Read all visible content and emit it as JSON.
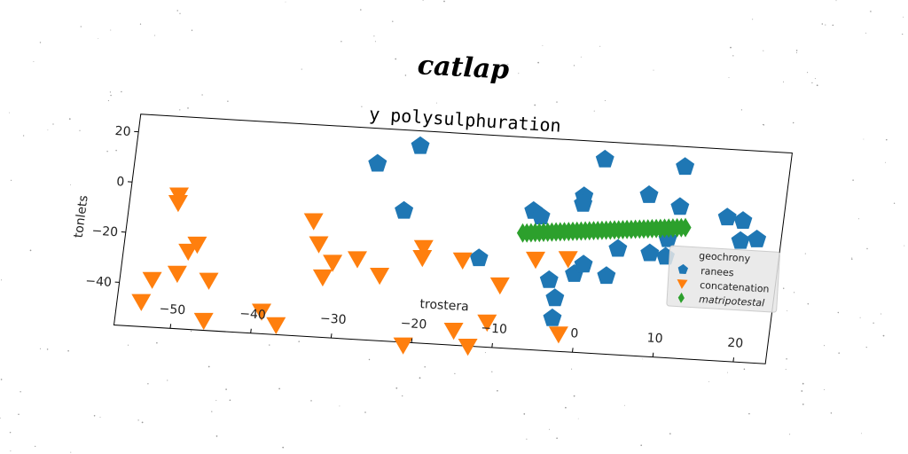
{
  "chart_data": {
    "type": "scatter",
    "suptitle": "catlap",
    "title": "y polysulphuration",
    "xlabel": "trostera",
    "ylabel": "tonlets",
    "xlim": [
      -57,
      24
    ],
    "ylim": [
      -57,
      27
    ],
    "xticks": [
      -50,
      -40,
      -30,
      -20,
      -10,
      0,
      10,
      20
    ],
    "yticks": [
      20,
      0,
      -20,
      -40
    ],
    "grid": false,
    "legend": {
      "title": "geochrony",
      "placement": "center-right",
      "entries": [
        "ranees",
        "concatenation",
        "matripotestal"
      ]
    },
    "series": [
      {
        "name": "ranees",
        "marker": "pentagon",
        "color": "#1f77b4",
        "points": [
          [
            -27,
            13
          ],
          [
            -22,
            21
          ],
          [
            -23,
            -5
          ],
          [
            -13,
            -22
          ],
          [
            -7,
            -2
          ],
          [
            -6,
            -4
          ],
          [
            -4,
            -29
          ],
          [
            -3,
            -36
          ],
          [
            -3,
            -44
          ],
          [
            -1,
            5
          ],
          [
            -1,
            2
          ],
          [
            -1,
            -26
          ],
          [
            0,
            -22
          ],
          [
            1,
            20
          ],
          [
            3,
            -26
          ],
          [
            4,
            -15
          ],
          [
            7,
            7
          ],
          [
            8,
            -16
          ],
          [
            10,
            -17
          ],
          [
            10,
            -10
          ],
          [
            11,
            19
          ],
          [
            11,
            3
          ],
          [
            17,
            0
          ],
          [
            19,
            -1
          ],
          [
            19,
            -9
          ],
          [
            21,
            -8
          ]
        ]
      },
      {
        "name": "concatenation",
        "marker": "triangle-down",
        "color": "#ff7f0e",
        "points": [
          [
            -54,
            -47
          ],
          [
            -53,
            -38
          ],
          [
            -51,
            -4
          ],
          [
            -51,
            -7
          ],
          [
            -50,
            -35
          ],
          [
            -49,
            -26
          ],
          [
            -48,
            -23
          ],
          [
            -46,
            -37
          ],
          [
            -46,
            -53
          ],
          [
            -39,
            -48
          ],
          [
            -37,
            -53
          ],
          [
            -34,
            -11
          ],
          [
            -33,
            -20
          ],
          [
            -32,
            -33
          ],
          [
            -31,
            -27
          ],
          [
            -28,
            -25
          ],
          [
            -25,
            -31
          ],
          [
            -21,
            -58
          ],
          [
            -20,
            -23
          ],
          [
            -20,
            -19
          ],
          [
            -15,
            -23
          ],
          [
            -15,
            -51
          ],
          [
            -13,
            -57
          ],
          [
            -11,
            -47
          ],
          [
            -10,
            -32
          ],
          [
            -6,
            -21
          ],
          [
            -2,
            -50
          ],
          [
            -2,
            -20
          ]
        ]
      },
      {
        "name": "matripotestal",
        "marker": "thin-diamond",
        "color": "#2ca02c",
        "line": {
          "from": [
            -8,
            -11
          ],
          "to": [
            12,
            -5
          ],
          "count": 40
        }
      }
    ]
  }
}
